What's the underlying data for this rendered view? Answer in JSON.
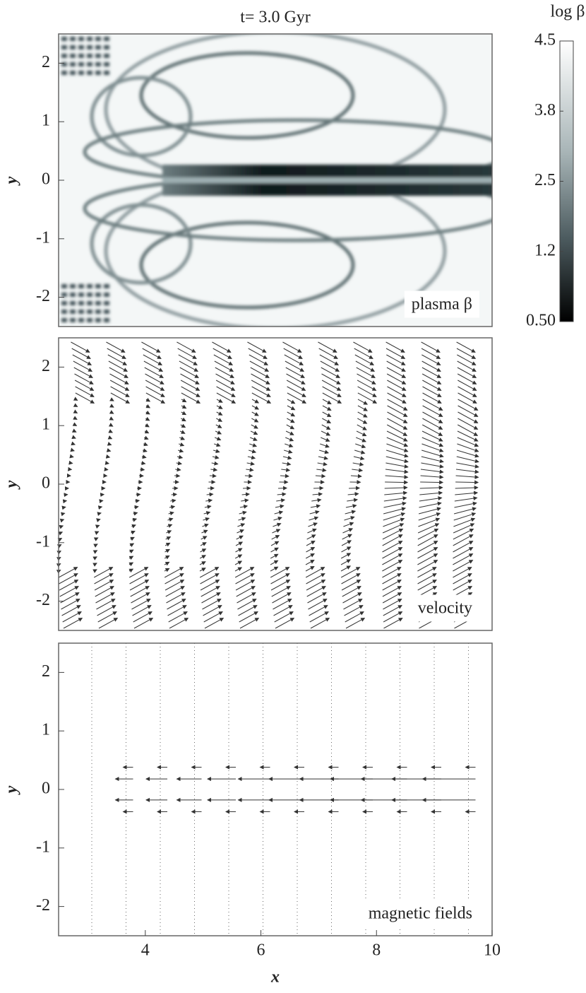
{
  "chart_data": [
    {
      "type": "heatmap",
      "title": "t= 3.0 Gyr",
      "ylabel": "y",
      "panel_label": "plasma β",
      "xlim": [
        2.5,
        10
      ],
      "ylim": [
        -2.5,
        2.5
      ],
      "yticks": [
        -2,
        -1,
        0,
        1,
        2
      ],
      "colorbar": {
        "label": "log β",
        "ticks": [
          4.5,
          3.8,
          2.5,
          1.2,
          {
            "value": 0.5,
            "label": "0.50"
          }
        ]
      }
    },
    {
      "type": "quiver",
      "ylabel": "y",
      "panel_label": "velocity",
      "xlim": [
        2.5,
        10
      ],
      "ylim": [
        -2.5,
        2.5
      ],
      "yticks": [
        -2,
        -1,
        0,
        1,
        2
      ]
    },
    {
      "type": "quiver",
      "ylabel": "y",
      "xlabel": "x",
      "panel_label": "magnetic fields",
      "xlim": [
        2.5,
        10
      ],
      "ylim": [
        -2.5,
        2.5
      ],
      "yticks": [
        -2,
        -1,
        0,
        1,
        2
      ],
      "xticks": [
        4,
        6,
        8,
        10
      ]
    }
  ]
}
